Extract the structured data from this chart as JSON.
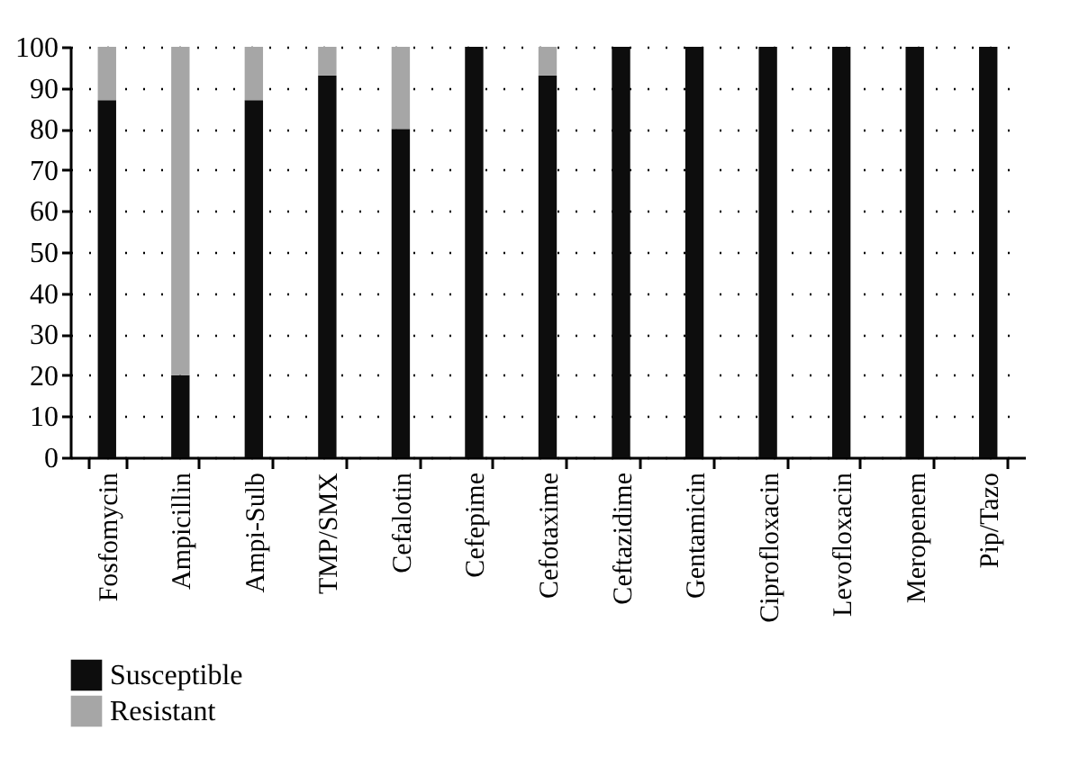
{
  "chart_data": {
    "type": "bar",
    "stacked": true,
    "categories": [
      "Fosfomycin",
      "Ampicillin",
      "Ampi-Sulb",
      "TMP/SMX",
      "Cefalotin",
      "Cefepime",
      "Cefotaxime",
      "Ceftazidime",
      "Gentamicin",
      "Ciprofloxacin",
      "Levofloxacin",
      "Meropenem",
      "Pip/Tazo"
    ],
    "series": [
      {
        "name": "Susceptible",
        "color": "#0d0d0d",
        "values": [
          87,
          20,
          87,
          93,
          80,
          100,
          93,
          100,
          100,
          100,
          100,
          100,
          100
        ]
      },
      {
        "name": "Resistant",
        "color": "#a6a6a6",
        "values": [
          13,
          80,
          13,
          7,
          20,
          0,
          7,
          0,
          0,
          0,
          0,
          0,
          0
        ]
      }
    ],
    "ylim": [
      0,
      100
    ],
    "yticks": [
      0,
      10,
      20,
      30,
      40,
      50,
      60,
      70,
      80,
      90,
      100
    ],
    "grid": "y",
    "legend": "bottom"
  }
}
